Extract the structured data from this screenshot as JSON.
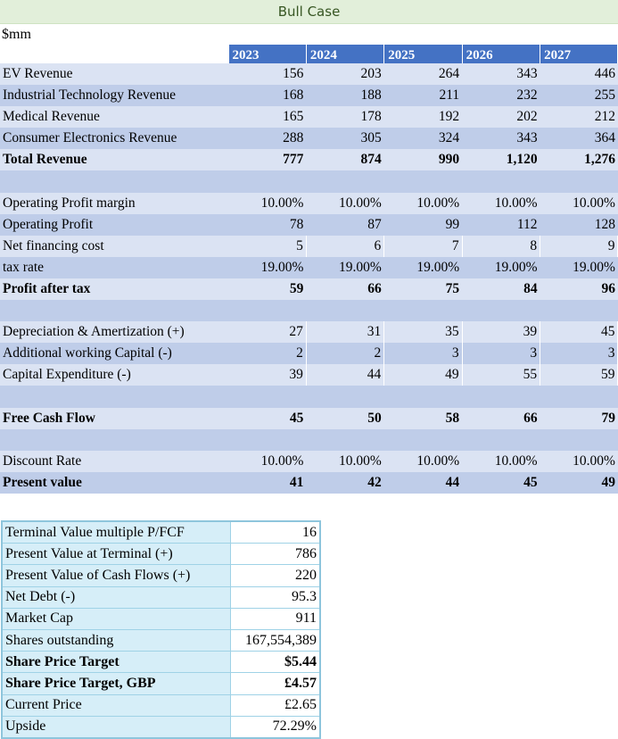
{
  "title": "Bull Case",
  "units": "$mm",
  "years": [
    "2023",
    "2024",
    "2025",
    "2026",
    "2027"
  ],
  "rows": [
    {
      "label": "EV Revenue",
      "values": [
        "156",
        "203",
        "264",
        "343",
        "446"
      ],
      "bold": false
    },
    {
      "label": "Industrial Technology Revenue",
      "values": [
        "168",
        "188",
        "211",
        "232",
        "255"
      ],
      "bold": false
    },
    {
      "label": "Medical Revenue",
      "values": [
        "165",
        "178",
        "192",
        "202",
        "212"
      ],
      "bold": false
    },
    {
      "label": "Consumer Electronics Revenue",
      "values": [
        "288",
        "305",
        "324",
        "343",
        "364"
      ],
      "bold": false
    },
    {
      "label": "Total Revenue",
      "values": [
        "777",
        "874",
        "990",
        "1,120",
        "1,276"
      ],
      "bold": true
    },
    {
      "label": "",
      "values": [
        "",
        "",
        "",
        "",
        ""
      ],
      "bold": false
    },
    {
      "label": "Operating Profit margin",
      "values": [
        "10.00%",
        "10.00%",
        "10.00%",
        "10.00%",
        "10.00%"
      ],
      "bold": false
    },
    {
      "label": "Operating Profit",
      "values": [
        "78",
        "87",
        "99",
        "112",
        "128"
      ],
      "bold": false
    },
    {
      "label": "Net financing cost",
      "values": [
        "5",
        "6",
        "7",
        "8",
        "9"
      ],
      "bold": false,
      "bordered": true
    },
    {
      "label": "tax rate",
      "values": [
        "19.00%",
        "19.00%",
        "19.00%",
        "19.00%",
        "19.00%"
      ],
      "bold": false
    },
    {
      "label": "Profit after tax",
      "values": [
        "59",
        "66",
        "75",
        "84",
        "96"
      ],
      "bold": true
    },
    {
      "label": "",
      "values": [
        "",
        "",
        "",
        "",
        ""
      ],
      "bold": false
    },
    {
      "label": "Depreciation & Amertization (+)",
      "values": [
        "27",
        "31",
        "35",
        "39",
        "45"
      ],
      "bold": false,
      "bordered": true
    },
    {
      "label": "Additional working Capital (-)",
      "values": [
        "2",
        "2",
        "3",
        "3",
        "3"
      ],
      "bold": false,
      "bordered": true
    },
    {
      "label": "Capital Expenditure (-)",
      "values": [
        "39",
        "44",
        "49",
        "55",
        "59"
      ],
      "bold": false,
      "bordered": true
    },
    {
      "label": "",
      "values": [
        "",
        "",
        "",
        "",
        ""
      ],
      "bold": false
    },
    {
      "label": "Free Cash Flow",
      "values": [
        "45",
        "50",
        "58",
        "66",
        "79"
      ],
      "bold": true
    },
    {
      "label": "",
      "values": [
        "",
        "",
        "",
        "",
        ""
      ],
      "bold": false
    },
    {
      "label": "Discount Rate",
      "values": [
        "10.00%",
        "10.00%",
        "10.00%",
        "10.00%",
        "10.00%"
      ],
      "bold": false
    },
    {
      "label": "Present value",
      "values": [
        "41",
        "42",
        "44",
        "45",
        "49"
      ],
      "bold": true
    }
  ],
  "summary": [
    {
      "label": "Terminal Value multiple P/FCF",
      "value": "16",
      "bold": false
    },
    {
      "label": "Present Value at Terminal (+)",
      "value": "786",
      "bold": false
    },
    {
      "label": "Present Value of Cash Flows (+)",
      "value": "220",
      "bold": false
    },
    {
      "label": "Net Debt (-)",
      "value": "95.3",
      "bold": false
    },
    {
      "label": "Market Cap",
      "value": "911",
      "bold": false
    },
    {
      "label": "Shares outstanding",
      "value": "167,554,389",
      "bold": false
    },
    {
      "label": "Share Price Target",
      "value": "$5.44",
      "bold": true
    },
    {
      "label": "Share Price Target, GBP",
      "value": "£4.57",
      "bold": true
    },
    {
      "label": "Current Price",
      "value": "£2.65",
      "bold": false
    },
    {
      "label": "Upside",
      "value": "72.29%",
      "bold": false
    }
  ]
}
